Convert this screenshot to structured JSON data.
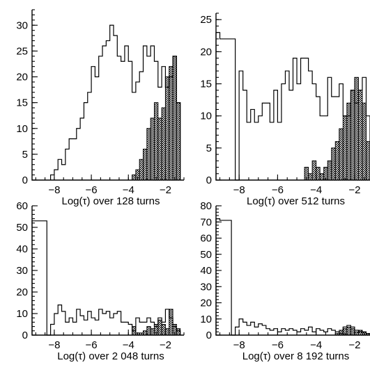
{
  "chart_data": [
    {
      "type": "histogram",
      "xlabel": "Log(τ) over 128 turns",
      "xlim": [
        -9.2,
        -1.0
      ],
      "ylim": [
        0,
        33
      ],
      "xticks": [
        -8,
        -6,
        -4,
        -2
      ],
      "xtick_labels": [
        "−8",
        "−6",
        "−4",
        "−2"
      ],
      "yticks": [
        0,
        5,
        10,
        15,
        20,
        25,
        30
      ],
      "series": [
        {
          "style": "outline",
          "edges": [
            -8.2,
            -8.0,
            -7.8,
            -7.6,
            -7.4,
            -7.2,
            -7.0,
            -6.8,
            -6.6,
            -6.4,
            -6.2,
            -6.0,
            -5.8,
            -5.6,
            -5.4,
            -5.2,
            -5.0,
            -4.8,
            -4.6,
            -4.4,
            -4.2,
            -4.0,
            -3.8,
            -3.6,
            -3.4,
            -3.2,
            -3.0,
            -2.8,
            -2.6,
            -2.4,
            -2.2,
            -2.0,
            -1.8,
            -1.6,
            -1.4,
            -1.2
          ],
          "values": [
            1,
            2,
            4,
            3,
            6,
            8,
            8,
            10,
            12,
            15,
            17,
            22,
            20,
            24,
            26,
            27,
            30,
            28,
            24,
            23,
            26,
            23,
            17,
            19,
            21,
            26,
            24,
            26,
            23,
            18,
            22,
            18,
            20,
            24,
            15
          ]
        },
        {
          "style": "hatched",
          "edges": [
            -3.8,
            -3.6,
            -3.4,
            -3.2,
            -3.0,
            -2.8,
            -2.6,
            -2.4,
            -2.2,
            -2.0,
            -1.8,
            -1.6,
            -1.4,
            -1.2
          ],
          "values": [
            1,
            2,
            4,
            6,
            10,
            12,
            15,
            12,
            14,
            20,
            22,
            24,
            15
          ]
        }
      ]
    },
    {
      "type": "histogram",
      "xlabel": "Log(τ) over 512 turns",
      "xlim": [
        -9.2,
        -1.2
      ],
      "ylim": [
        0,
        26
      ],
      "xticks": [
        -8,
        -6,
        -4,
        -2
      ],
      "xtick_labels": [
        "−8",
        "−6",
        "−4",
        "−2"
      ],
      "yticks": [
        0,
        5,
        10,
        15,
        20,
        25
      ],
      "series": [
        {
          "style": "outline",
          "edges": [
            -9.2,
            -9.0,
            -8.8,
            -8.6,
            -8.4,
            -8.2,
            -8.0,
            -7.8,
            -7.6,
            -7.4,
            -7.2,
            -7.0,
            -6.8,
            -6.6,
            -6.4,
            -6.2,
            -6.0,
            -5.8,
            -5.6,
            -5.4,
            -5.2,
            -5.0,
            -4.8,
            -4.6,
            -4.4,
            -4.2,
            -4.0,
            -3.8,
            -3.6,
            -3.4,
            -3.2,
            -3.0,
            -2.8,
            -2.6,
            -2.4,
            -2.2,
            -2.0,
            -1.8,
            -1.6,
            -1.4,
            -1.2
          ],
          "values": [
            23,
            22,
            22,
            22,
            22,
            0,
            17,
            14,
            9,
            11,
            9,
            10,
            12,
            12,
            9,
            14,
            9,
            15,
            17,
            14,
            19,
            15,
            19,
            19,
            17,
            15,
            13,
            10,
            10,
            16,
            13,
            13,
            15,
            10,
            10,
            14,
            12,
            14,
            16,
            10
          ]
        },
        {
          "style": "hatched",
          "edges": [
            -4.6,
            -4.4,
            -4.2,
            -4.0,
            -3.8,
            -3.6,
            -3.4,
            -3.2,
            -3.0,
            -2.8,
            -2.6,
            -2.4,
            -2.2,
            -2.0,
            -1.8,
            -1.6,
            -1.4,
            -1.2
          ],
          "values": [
            2,
            1,
            3,
            2,
            1,
            2,
            3,
            5,
            6,
            8,
            10,
            12,
            14,
            16,
            14,
            12,
            6
          ]
        }
      ]
    },
    {
      "type": "histogram",
      "xlabel": "Log(τ) over 2 048 turns",
      "xlim": [
        -9.2,
        -1.0
      ],
      "ylim": [
        0,
        60
      ],
      "xticks": [
        -8,
        -6,
        -4,
        -2
      ],
      "xtick_labels": [
        "−8",
        "−6",
        "−4",
        "−2"
      ],
      "yticks": [
        0,
        10,
        20,
        30,
        40,
        50,
        60
      ],
      "series": [
        {
          "style": "outline",
          "edges": [
            -9.2,
            -9.0,
            -8.8,
            -8.6,
            -8.4,
            -8.2,
            -8.0,
            -7.8,
            -7.6,
            -7.4,
            -7.2,
            -7.0,
            -6.8,
            -6.6,
            -6.4,
            -6.2,
            -6.0,
            -5.8,
            -5.6,
            -5.4,
            -5.2,
            -5.0,
            -4.8,
            -4.6,
            -4.4,
            -4.2,
            -4.0,
            -3.8,
            -3.6,
            -3.4,
            -3.2,
            -3.0,
            -2.8,
            -2.6,
            -2.4,
            -2.2,
            -2.0,
            -1.8,
            -1.6,
            -1.4,
            -1.2
          ],
          "values": [
            53,
            53,
            53,
            53,
            0,
            5,
            10,
            14,
            11,
            6,
            8,
            6,
            12,
            9,
            7,
            11,
            8,
            7,
            12,
            10,
            11,
            8,
            10,
            11,
            6,
            6,
            5,
            2,
            8,
            6,
            6,
            8,
            6,
            4,
            8,
            6,
            12,
            8,
            4,
            2
          ]
        },
        {
          "style": "hatched",
          "edges": [
            -3.8,
            -3.6,
            -3.4,
            -3.2,
            -3.0,
            -2.8,
            -2.6,
            -2.4,
            -2.2,
            -2.0,
            -1.8,
            -1.6,
            -1.4,
            -1.2
          ],
          "values": [
            4,
            1,
            1,
            2,
            4,
            3,
            5,
            7,
            5,
            3,
            12,
            5,
            3
          ]
        }
      ]
    },
    {
      "type": "histogram",
      "xlabel": "Log(τ) over 8 192 turns",
      "xlim": [
        -9.2,
        -1.2
      ],
      "ylim": [
        0,
        80
      ],
      "xticks": [
        -8,
        -6,
        -4,
        -2
      ],
      "xtick_labels": [
        "−8",
        "−6",
        "−4",
        "−2"
      ],
      "yticks": [
        0,
        10,
        20,
        30,
        40,
        50,
        60,
        70,
        80
      ],
      "series": [
        {
          "style": "outline",
          "edges": [
            -9.2,
            -9.0,
            -8.8,
            -8.6,
            -8.4,
            -8.2,
            -8.0,
            -7.8,
            -7.6,
            -7.4,
            -7.2,
            -7.0,
            -6.8,
            -6.6,
            -6.4,
            -6.2,
            -6.0,
            -5.8,
            -5.6,
            -5.4,
            -5.2,
            -5.0,
            -4.8,
            -4.6,
            -4.4,
            -4.2,
            -4.0,
            -3.8,
            -3.6,
            -3.4,
            -3.2,
            -3.0,
            -2.8,
            -2.6,
            -2.4,
            -2.2,
            -2.0,
            -1.8,
            -1.6,
            -1.4,
            -1.2
          ],
          "values": [
            72,
            71,
            71,
            71,
            0,
            5,
            10,
            8,
            6,
            8,
            5,
            7,
            6,
            4,
            3,
            4,
            2,
            4,
            3,
            4,
            3,
            2,
            4,
            3,
            5,
            2,
            4,
            3,
            2,
            4,
            3,
            2,
            1,
            5,
            6,
            5,
            3,
            2,
            2,
            1
          ]
        },
        {
          "style": "hatched",
          "edges": [
            -3.0,
            -2.8,
            -2.6,
            -2.4,
            -2.2,
            -2.0,
            -1.8,
            -1.6,
            -1.4,
            -1.2
          ],
          "values": [
            1,
            3,
            4,
            5,
            4,
            2,
            3,
            2,
            1
          ]
        }
      ]
    }
  ]
}
